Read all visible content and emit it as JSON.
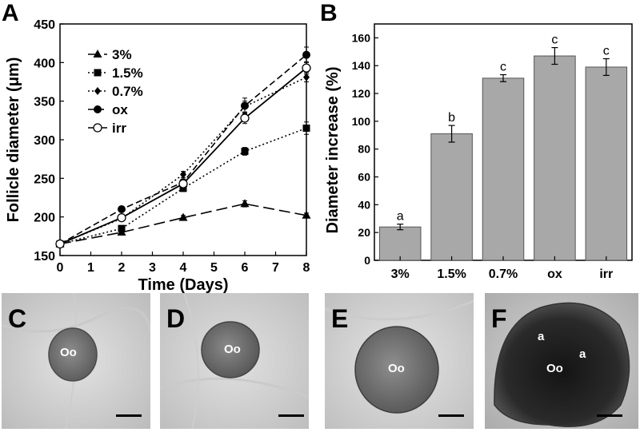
{
  "panels": {
    "A": "A",
    "B": "B",
    "C": "C",
    "D": "D",
    "E": "E",
    "F": "F"
  },
  "chart_data": [
    {
      "panel": "A",
      "type": "line",
      "xlabel": "Time (Days)",
      "ylabel": "Follicle diameter (μm)",
      "xlim": [
        0,
        8
      ],
      "ylim": [
        150,
        450
      ],
      "xticks": [
        "0",
        "1",
        "2",
        "3",
        "4",
        "5",
        "6",
        "7",
        "8"
      ],
      "yticks": [
        "150",
        "200",
        "250",
        "300",
        "350",
        "400",
        "450"
      ],
      "x": [
        0,
        2,
        4,
        6,
        8
      ],
      "legend_position": "top-left",
      "series": [
        {
          "name": "3%",
          "marker": "triangle",
          "line": "long-dash",
          "values": [
            165,
            180,
            199,
            217,
            202
          ],
          "errors": [
            0,
            3,
            3,
            4,
            3
          ]
        },
        {
          "name": "1.5%",
          "marker": "square",
          "line": "dotted",
          "values": [
            165,
            185,
            237,
            285,
            315
          ],
          "errors": [
            0,
            3,
            4,
            5,
            8
          ]
        },
        {
          "name": "0.7%",
          "marker": "diamond",
          "line": "dotted",
          "values": [
            165,
            198,
            255,
            343,
            381
          ],
          "errors": [
            0,
            3,
            4,
            7,
            6
          ]
        },
        {
          "name": "ox",
          "marker": "filled-circle",
          "line": "dashed",
          "values": [
            165,
            210,
            245,
            344,
            410
          ],
          "errors": [
            0,
            3,
            4,
            10,
            10
          ]
        },
        {
          "name": "irr",
          "marker": "open-circle",
          "line": "solid",
          "values": [
            165,
            199,
            243,
            328,
            393
          ],
          "errors": [
            0,
            3,
            4,
            7,
            8
          ]
        }
      ]
    },
    {
      "panel": "B",
      "type": "bar",
      "xlabel": "",
      "ylabel": "Diameter increase (%)",
      "ylim": [
        0,
        170
      ],
      "yticks": [
        "0",
        "20",
        "40",
        "60",
        "80",
        "100",
        "120",
        "140",
        "160"
      ],
      "categories": [
        "3%",
        "1.5%",
        "0.7%",
        "ox",
        "irr"
      ],
      "values": [
        24,
        91,
        131,
        147,
        139
      ],
      "errors": [
        2,
        6,
        2.5,
        6,
        6
      ],
      "annotations": [
        "a",
        "b",
        "c",
        "c",
        "c"
      ],
      "bar_color": "#a8a8a8"
    }
  ],
  "micrographs": [
    {
      "letter": "C",
      "labels": [
        {
          "text": "Oo"
        }
      ]
    },
    {
      "letter": "D",
      "labels": [
        {
          "text": "Oo"
        }
      ]
    },
    {
      "letter": "E",
      "labels": [
        {
          "text": "Oo"
        }
      ]
    },
    {
      "letter": "F",
      "labels": [
        {
          "text": "Oo"
        },
        {
          "text": "a"
        },
        {
          "text": "a"
        }
      ]
    }
  ]
}
